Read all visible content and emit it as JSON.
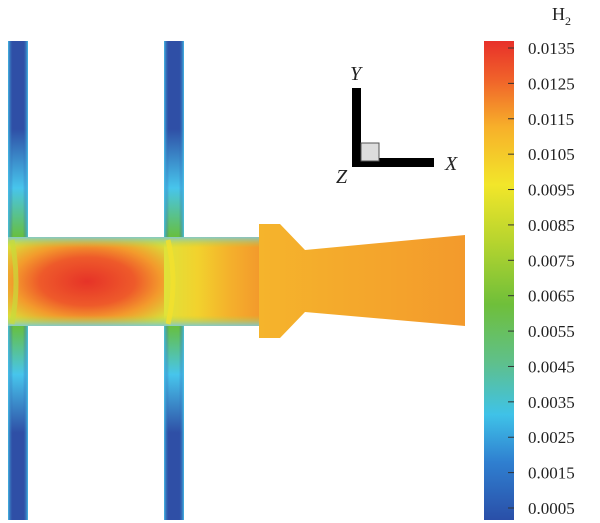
{
  "field": {
    "title_base": "H",
    "title_sub": "2"
  },
  "colorbar": {
    "ticks": [
      "0.0135",
      "0.0125",
      "0.0115",
      "0.0105",
      "0.0095",
      "0.0085",
      "0.0075",
      "0.0065",
      "0.0055",
      "0.0045",
      "0.0035",
      "0.0025",
      "0.0015",
      "0.0005"
    ],
    "stops": [
      "#2a4fa8",
      "#2f7fd0",
      "#3fc2e8",
      "#5fc08a",
      "#6fbf3a",
      "#b6d42e",
      "#f2e62a",
      "#f7b02a",
      "#f0622a",
      "#e8302a"
    ]
  },
  "axes": {
    "x": "X",
    "y": "Y",
    "z": "Z"
  },
  "colors": {
    "low": "#2f4fa6",
    "cyan": "#47c5ec",
    "green": "#67bf3f",
    "yellow": "#f2e02d",
    "orange": "#f39a2c",
    "red": "#e63328"
  }
}
